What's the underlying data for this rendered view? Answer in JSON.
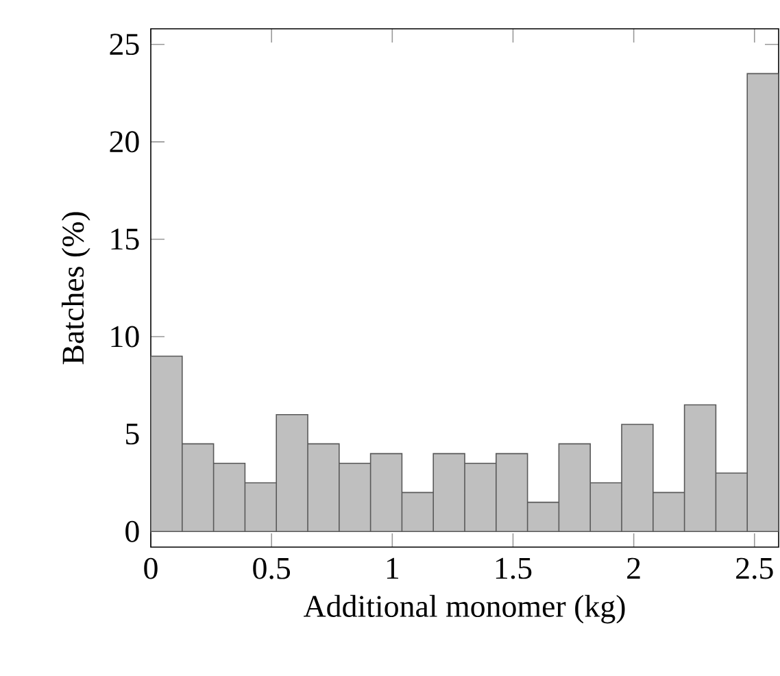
{
  "chart_data": {
    "type": "histogram",
    "xlabel": "Additional monomer (kg)",
    "ylabel": "Batches (%)",
    "bins": [
      0,
      0.13,
      0.26,
      0.39,
      0.52,
      0.65,
      0.78,
      0.91,
      1.04,
      1.17,
      1.3,
      1.43,
      1.56,
      1.69,
      1.82,
      1.95,
      2.08,
      2.21,
      2.34,
      2.47,
      2.6
    ],
    "values": [
      9,
      4.5,
      3.5,
      2.5,
      6,
      4.5,
      3.5,
      4,
      2,
      4,
      3.5,
      4,
      1.5,
      4.5,
      2.5,
      5.5,
      2,
      6.5,
      3,
      23.5
    ],
    "color": "#bfbfbf",
    "xlim": [
      0,
      2.6
    ],
    "ylim": [
      -0.8,
      25.8
    ],
    "xticks": [
      0,
      0.5,
      1,
      1.5,
      2,
      2.5
    ],
    "yticks": [
      0,
      5,
      10,
      15,
      20,
      25
    ],
    "grid": false
  }
}
